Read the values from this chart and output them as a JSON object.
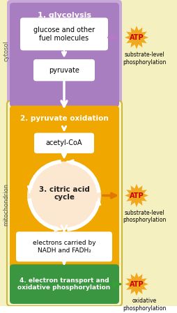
{
  "bg_outer": "#f5f0c0",
  "bg_cytosol": "#c8a8d8",
  "bg_orange": "#f0a800",
  "bg_green": "#3a9640",
  "box_white": "#ffffff",
  "box_cream": "#fce8cc",
  "arrow_purple": "#b878c8",
  "arrow_orange": "#e07800",
  "arrow_green": "#38a038",
  "atp_bg": "#f0a820",
  "atp_text": "#cc0000",
  "label_cytosol": "cytosol",
  "label_mito": "mitochondrion",
  "stage1_title": "1. glycolysis",
  "stage1_box1": "glucose and other\nfuel molecules",
  "stage1_box2": "pyruvate",
  "stage2_title": "2. pyruvate oxidation",
  "stage3_box": "acetyl-CoA",
  "stage3_title": "3. citric acid\ncycle",
  "stage4_box": "electrons carried by\nNADH and FADH₂",
  "stage5_title": "4. electron transport and\noxidative phosphorylation",
  "sublevel1": "substrate-level\nphosphorylation",
  "sublevel2": "substrate-level\nphosphorylation",
  "oxidative": "oxidative\nphosphorylation",
  "outer_edge": "#d8c860",
  "mito_edge": "#c8b840",
  "mito_bg": "#f8f4c8"
}
